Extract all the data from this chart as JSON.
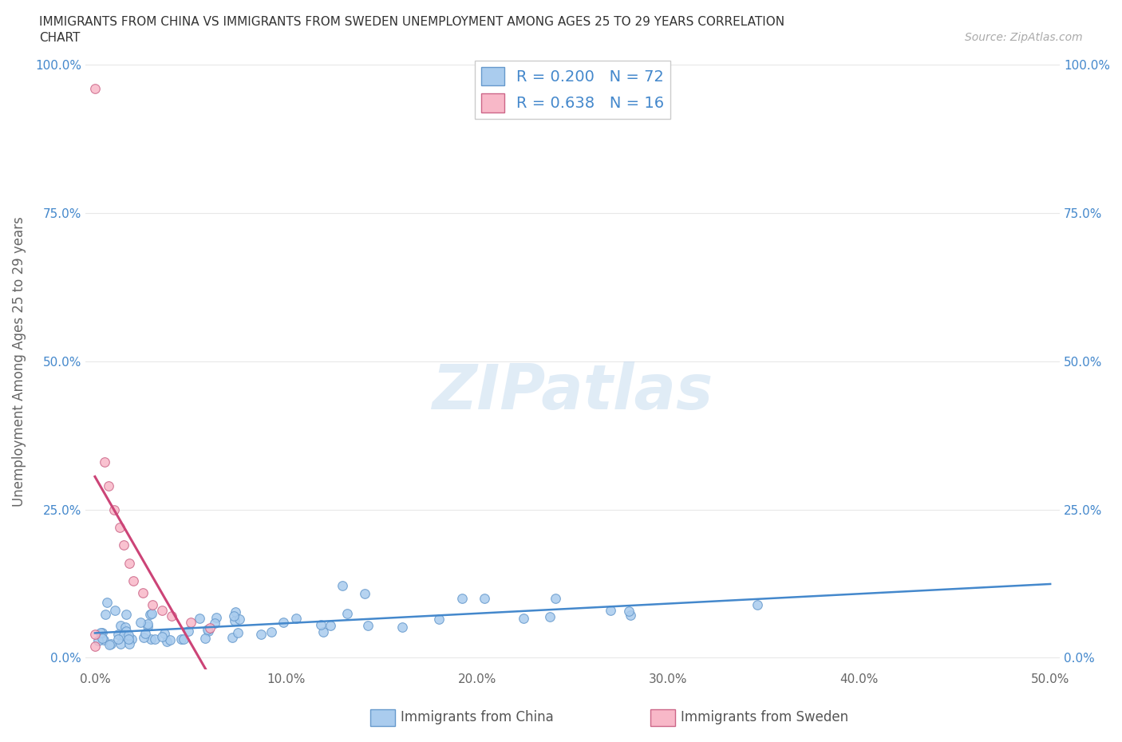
{
  "title_line1": "IMMIGRANTS FROM CHINA VS IMMIGRANTS FROM SWEDEN UNEMPLOYMENT AMONG AGES 25 TO 29 YEARS CORRELATION",
  "title_line2": "CHART",
  "source": "Source: ZipAtlas.com",
  "ylabel": "Unemployment Among Ages 25 to 29 years",
  "xlim": [
    -0.005,
    0.505
  ],
  "ylim": [
    -0.02,
    1.02
  ],
  "xtick_vals": [
    0.0,
    0.1,
    0.2,
    0.3,
    0.4,
    0.5
  ],
  "xtick_labels": [
    "0.0%",
    "10.0%",
    "20.0%",
    "30.0%",
    "40.0%",
    "50.0%"
  ],
  "ytick_vals": [
    0.0,
    0.25,
    0.5,
    0.75,
    1.0
  ],
  "ytick_labels": [
    "0.0%",
    "25.0%",
    "50.0%",
    "75.0%",
    "100.0%"
  ],
  "china_color": "#aaccee",
  "china_edge_color": "#6699cc",
  "sweden_color": "#f8b8c8",
  "sweden_edge_color": "#cc6688",
  "china_line_color": "#4488cc",
  "sweden_line_color": "#cc4477",
  "R_china": 0.2,
  "N_china": 72,
  "R_sweden": 0.638,
  "N_sweden": 16,
  "legend_color": "#4488cc",
  "title_color": "#333333",
  "grid_color": "#e8e8e8",
  "watermark_color": "#c8ddf0",
  "background_color": "#ffffff",
  "marker_size": 70
}
